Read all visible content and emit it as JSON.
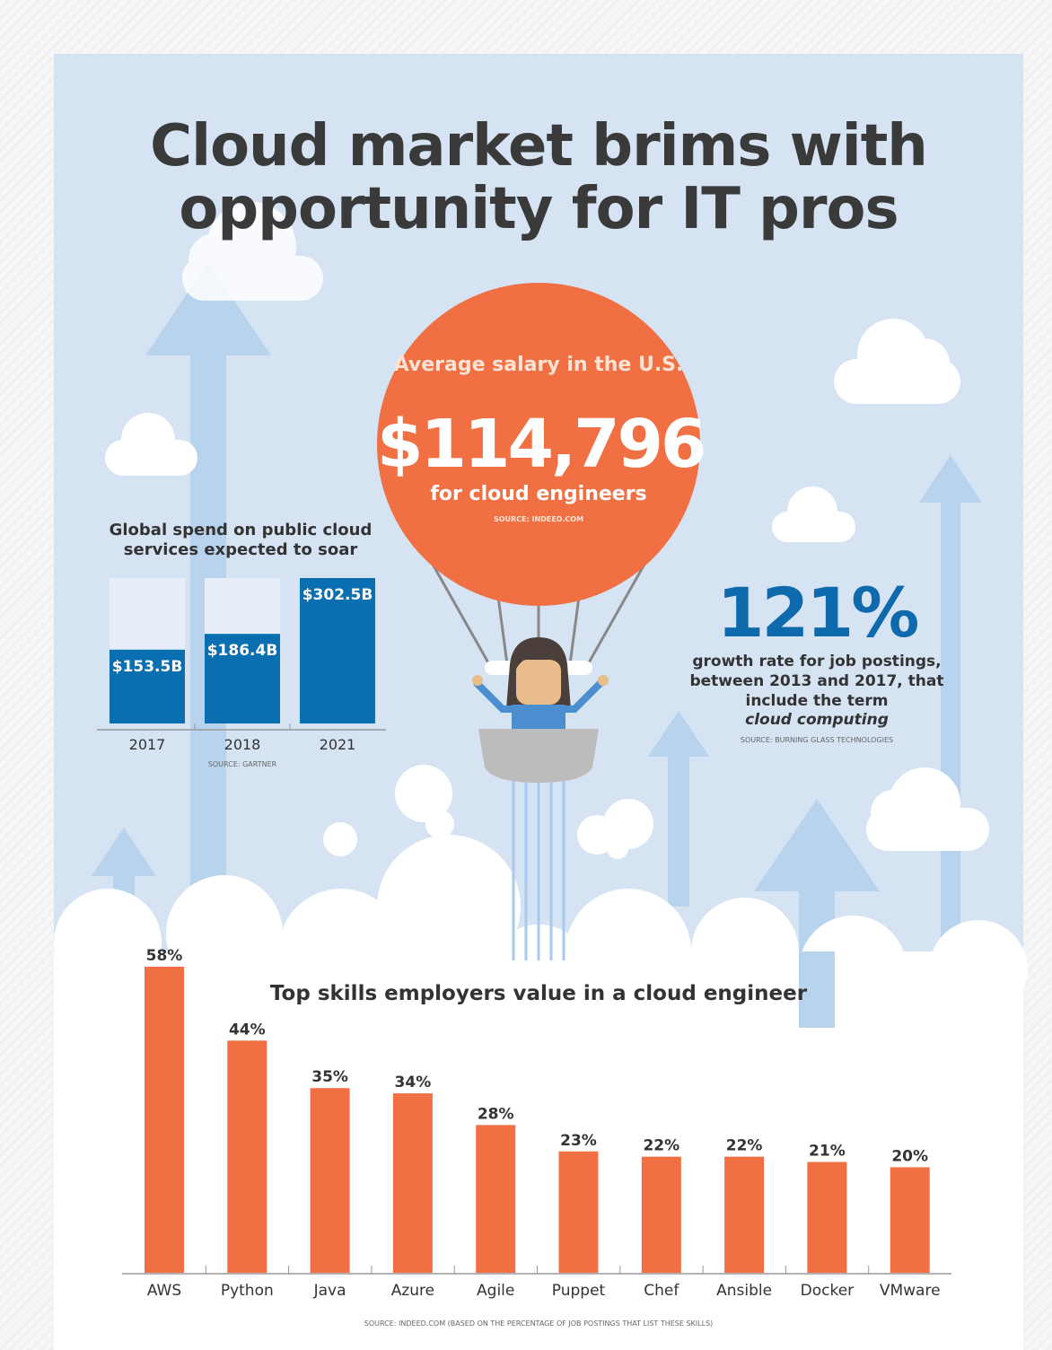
{
  "title": "Cloud market brims with opportunity for IT pros",
  "salary": {
    "heading": "Average salary in the U.S.",
    "value": "$114,796",
    "subtitle": "for cloud engineers",
    "source": "SOURCE: INDEED.COM"
  },
  "growth": {
    "value": "121%",
    "text": "growth rate for job postings, between 2013 and 2017, that include the term",
    "emphasis": "cloud computing",
    "source": "SOURCE: BURNING GLASS TECHNOLOGIES"
  },
  "colors": {
    "orange": "#f07044",
    "blue": "#0f6aad",
    "background": "#d5e3f3",
    "arrow": "#b8d3ee"
  },
  "chart_data": [
    {
      "type": "bar",
      "title": "Global spend on public cloud services expected to soar",
      "categories": [
        "2017",
        "2018",
        "2021"
      ],
      "values": [
        153.5,
        186.4,
        302.5
      ],
      "data_labels": [
        "$153.5B",
        "$186.4B",
        "$302.5B"
      ],
      "source": "SOURCE: GARTNER",
      "ylim": [
        0,
        302.5
      ]
    },
    {
      "type": "bar",
      "title": "Top skills employers value in a cloud engineer",
      "categories": [
        "AWS",
        "Python",
        "Java",
        "Azure",
        "Agile",
        "Puppet",
        "Chef",
        "Ansible",
        "Docker",
        "VMware"
      ],
      "values": [
        58,
        44,
        35,
        34,
        28,
        23,
        22,
        22,
        21,
        20
      ],
      "data_labels": [
        "58%",
        "44%",
        "35%",
        "34%",
        "28%",
        "23%",
        "22%",
        "22%",
        "21%",
        "20%"
      ],
      "source": "SOURCE: INDEED.COM (BASED ON THE PERCENTAGE OF JOB POSTINGS THAT LIST THESE SKILLS)",
      "ylim": [
        0,
        58
      ]
    }
  ]
}
